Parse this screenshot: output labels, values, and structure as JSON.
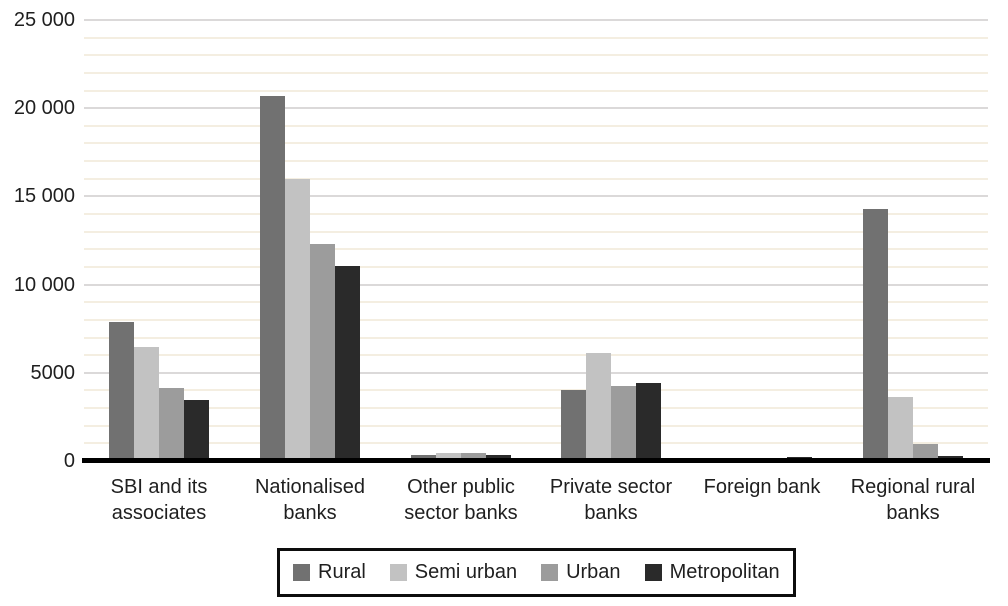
{
  "chart_data": {
    "type": "bar",
    "title": "",
    "xlabel": "",
    "ylabel": "",
    "categories": [
      {
        "label": "SBI and its associates",
        "lines": [
          "SBI and its",
          "associates"
        ]
      },
      {
        "label": "Nationalised banks",
        "lines": [
          "Nationalised",
          "banks"
        ]
      },
      {
        "label": "Other public sector banks",
        "lines": [
          "Other public",
          "sector banks"
        ]
      },
      {
        "label": "Private sector banks",
        "lines": [
          "Private sector",
          "banks"
        ]
      },
      {
        "label": "Foreign bank",
        "lines": [
          "Foreign bank"
        ]
      },
      {
        "label": "Regional rural banks",
        "lines": [
          "Regional rural",
          "banks"
        ]
      }
    ],
    "series": [
      {
        "name": "Rural",
        "color": "#717171",
        "values": [
          7900,
          20700,
          320,
          4050,
          10,
          14300
        ]
      },
      {
        "name": "Semi urban",
        "color": "#c2c2c2",
        "values": [
          6450,
          16000,
          440,
          6130,
          10,
          3620
        ]
      },
      {
        "name": "Urban",
        "color": "#9c9c9c",
        "values": [
          4150,
          12300,
          450,
          4280,
          60,
          960
        ]
      },
      {
        "name": "Metropolitan",
        "color": "#2a2a2a",
        "values": [
          3460,
          11080,
          330,
          4420,
          245,
          280
        ]
      }
    ],
    "y_axis": {
      "min": 0,
      "max": 25000,
      "major_step": 5000,
      "minor_step": 1000,
      "tick_labels": [
        {
          "value": 25000,
          "label": "25 000"
        },
        {
          "value": 20000,
          "label": "20 000"
        },
        {
          "value": 15000,
          "label": "15 000"
        },
        {
          "value": 10000,
          "label": "10 000"
        },
        {
          "value": 5000,
          "label": "5000"
        },
        {
          "value": 0,
          "label": "0"
        }
      ]
    },
    "legend": {
      "position": "bottom",
      "entries": [
        "Rural",
        "Semi urban",
        "Urban",
        "Metropolitan"
      ]
    },
    "grid": {
      "minor_color": "#f4eee1",
      "major_color": "#dbd9d9",
      "axis_color": "#000000"
    }
  }
}
